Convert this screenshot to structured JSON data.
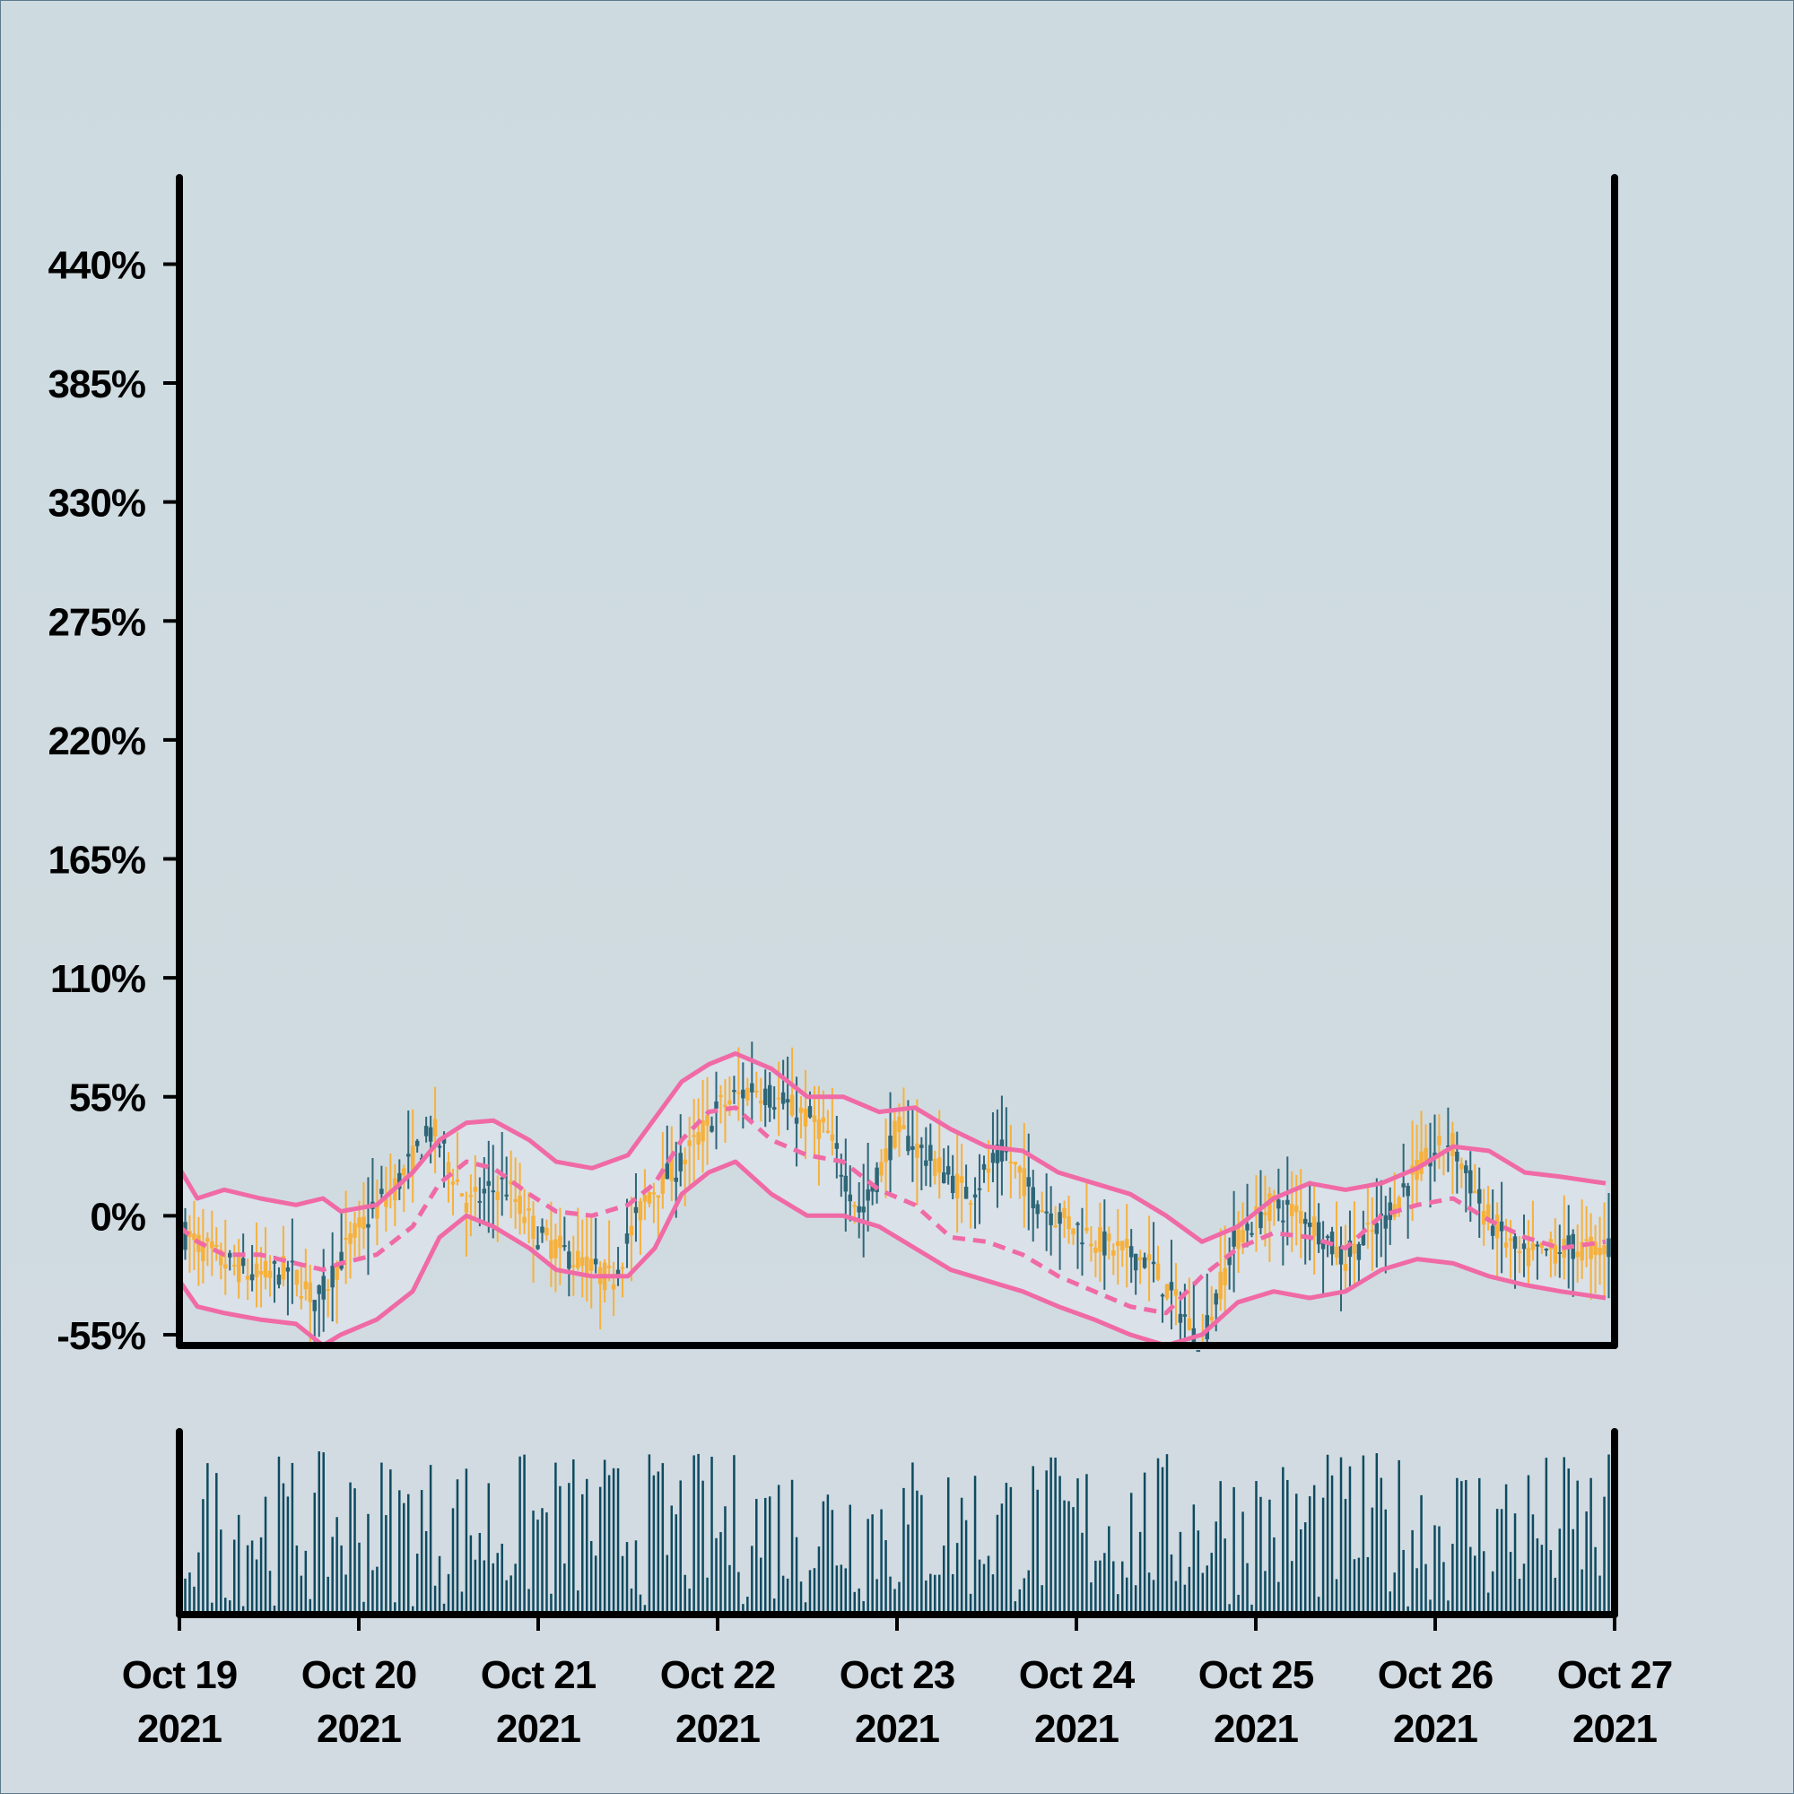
{
  "colors": {
    "background": "#cfdce0",
    "up_candle": "#2e6677",
    "down_candle": "#f6b13c",
    "band_line": "#f06aa6",
    "band_fill": "#dfe4ee",
    "volume_bar": "#0e4a60",
    "axis": "#000000"
  },
  "chart_data": {
    "type": "candlestick",
    "title": "",
    "xlabel": "",
    "ylabel": "",
    "y_unit": "%",
    "ylim": [
      -60,
      480
    ],
    "y_ticks": [
      -55,
      0,
      55,
      110,
      165,
      220,
      275,
      330,
      385,
      440
    ],
    "y_tick_labels": [
      "-55%",
      "0%",
      "55%",
      "110%",
      "165%",
      "220%",
      "275%",
      "330%",
      "385%",
      "440%"
    ],
    "x_range": [
      "2021-10-19",
      "2021-10-27"
    ],
    "x_ticks": [
      "2021-10-19",
      "2021-10-20",
      "2021-10-21",
      "2021-10-22",
      "2021-10-23",
      "2021-10-24",
      "2021-10-25",
      "2021-10-26",
      "2021-10-27"
    ],
    "x_tick_labels": [
      [
        "Oct 19",
        "2021"
      ],
      [
        "Oct 20",
        "2021"
      ],
      [
        "Oct 21",
        "2021"
      ],
      [
        "Oct 22",
        "2021"
      ],
      [
        "Oct 23",
        "2021"
      ],
      [
        "Oct 24",
        "2021"
      ],
      [
        "Oct 25",
        "2021"
      ],
      [
        "Oct 26",
        "2021"
      ],
      [
        "Oct 27",
        "2021"
      ]
    ],
    "close_series": {
      "days": [
        0,
        0.2,
        0.4,
        0.6,
        0.75,
        0.95,
        1.2,
        1.4,
        1.6,
        1.8,
        2.0,
        2.2,
        2.4,
        2.6,
        2.8,
        3.0,
        3.2,
        3.4,
        3.6,
        3.8,
        4.0,
        4.2,
        4.4,
        4.6,
        4.8,
        5.0,
        5.2,
        5.4,
        5.6,
        5.7,
        5.9,
        6.1,
        6.3,
        6.5,
        6.7,
        6.9,
        7.1,
        7.3,
        7.5,
        7.7,
        7.9
      ],
      "close": [
        -8,
        -20,
        -28,
        -25,
        -40,
        -10,
        15,
        40,
        5,
        15,
        -10,
        -20,
        -30,
        10,
        25,
        50,
        60,
        50,
        40,
        0,
        40,
        25,
        10,
        30,
        5,
        -5,
        -15,
        -20,
        -45,
        -60,
        -10,
        5,
        0,
        -20,
        -5,
        20,
        35,
        0,
        -20,
        -15,
        -15
      ]
    },
    "bollinger": {
      "days": [
        0,
        0.1,
        0.25,
        0.45,
        0.65,
        0.8,
        0.9,
        1.1,
        1.3,
        1.45,
        1.6,
        1.75,
        1.95,
        2.1,
        2.3,
        2.5,
        2.65,
        2.8,
        2.95,
        3.1,
        3.3,
        3.5,
        3.7,
        3.9,
        4.1,
        4.3,
        4.5,
        4.7,
        4.9,
        5.1,
        5.3,
        5.5,
        5.7,
        5.9,
        6.1,
        6.3,
        6.5,
        6.7,
        6.9,
        7.1,
        7.3,
        7.5,
        7.7,
        7.95
      ],
      "upper": [
        22,
        8,
        12,
        8,
        5,
        8,
        2,
        5,
        20,
        35,
        43,
        44,
        35,
        25,
        22,
        28,
        45,
        62,
        70,
        75,
        68,
        55,
        55,
        48,
        50,
        40,
        32,
        30,
        20,
        15,
        10,
        0,
        -12,
        -5,
        8,
        15,
        12,
        15,
        22,
        32,
        30,
        20,
        18,
        15
      ],
      "middle": [
        -5,
        -12,
        -18,
        -18,
        -22,
        -25,
        -22,
        -18,
        -5,
        15,
        25,
        22,
        10,
        2,
        0,
        5,
        15,
        35,
        48,
        50,
        35,
        28,
        25,
        12,
        5,
        -10,
        -12,
        -18,
        -28,
        -35,
        -42,
        -45,
        -28,
        -15,
        -8,
        -10,
        -15,
        0,
        5,
        8,
        -2,
        -10,
        -15,
        -12
      ],
      "lower": [
        -30,
        -42,
        -45,
        -48,
        -50,
        -60,
        -55,
        -48,
        -35,
        -10,
        0,
        -5,
        -15,
        -25,
        -28,
        -28,
        -15,
        10,
        20,
        25,
        10,
        0,
        0,
        -5,
        -15,
        -25,
        -30,
        -35,
        -42,
        -48,
        -55,
        -60,
        -55,
        -40,
        -35,
        -38,
        -35,
        -25,
        -20,
        -22,
        -28,
        -32,
        -35,
        -38
      ]
    },
    "volume": {
      "count": 320,
      "min": 0.05,
      "max": 1.0,
      "unit": "relative"
    }
  }
}
